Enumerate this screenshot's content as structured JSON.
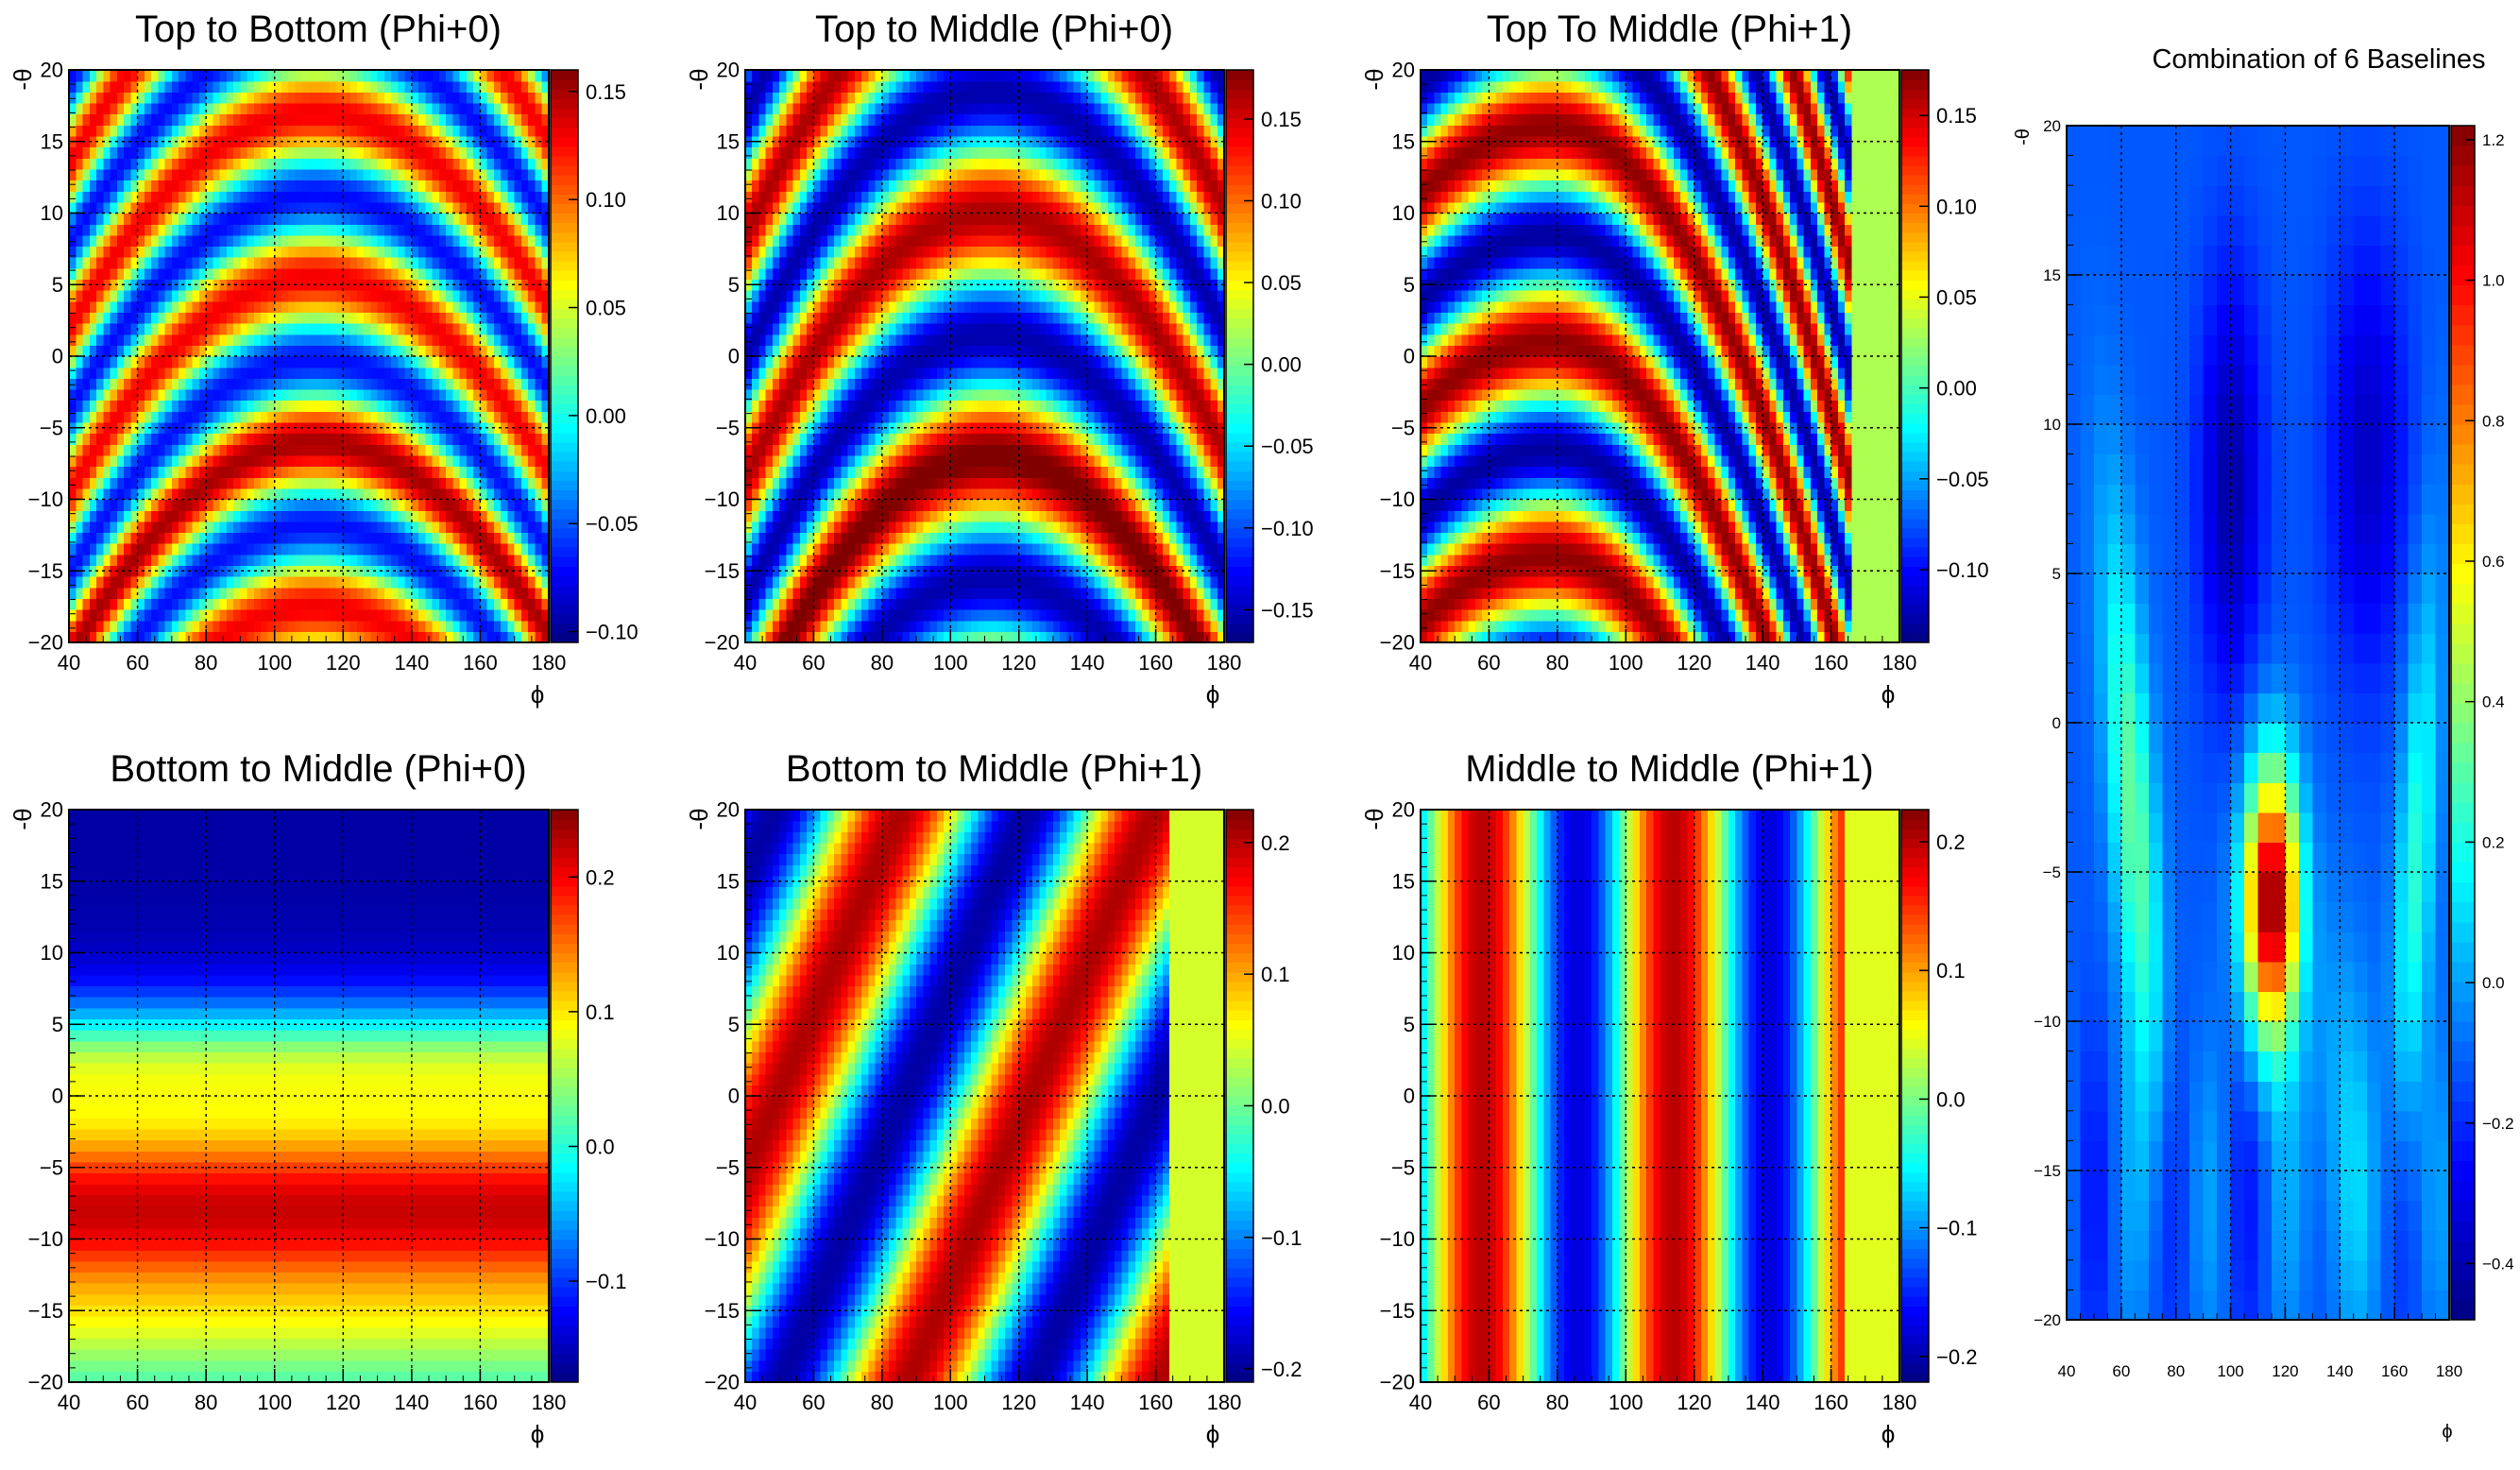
{
  "figure": {
    "background": "#ffffff",
    "colormap": "jet"
  },
  "chart_data": [
    {
      "type": "heatmap",
      "title": "Top to Bottom (Phi+0)",
      "xlabel": "ϕ",
      "ylabel": "-θ",
      "xlim": [
        40,
        180
      ],
      "ylim": [
        -20,
        20
      ],
      "xticks": [
        40,
        60,
        80,
        100,
        120,
        140,
        160,
        180
      ],
      "yticks": [
        -20,
        -15,
        -10,
        -5,
        0,
        5,
        10,
        15,
        20
      ],
      "zlim": [
        -0.105,
        0.16
      ],
      "zticks": [
        -0.1,
        -0.05,
        0.0,
        0.05,
        0.1,
        0.15
      ],
      "ztick_labels": [
        "−0.10",
        "−0.05",
        "0.00",
        "0.05",
        "0.10",
        "0.15"
      ],
      "grid": true,
      "pattern": "Concentric arcs centred near ϕ=112; red band along arc through -θ≈-6 at ϕ=112, blue bands near -θ≈-1 and -θ≈-13, alternating yellow/blue above",
      "valid_phi_max": 180
    },
    {
      "type": "heatmap",
      "title": "Top to  Middle (Phi+0)",
      "xlabel": "ϕ",
      "ylabel": "-θ",
      "xlim": [
        40,
        180
      ],
      "ylim": [
        -20,
        20
      ],
      "xticks": [
        40,
        60,
        80,
        100,
        120,
        140,
        160,
        180
      ],
      "yticks": [
        -20,
        -15,
        -10,
        -5,
        0,
        5,
        10,
        15,
        20
      ],
      "zlim": [
        -0.17,
        0.18
      ],
      "zticks": [
        -0.15,
        -0.1,
        -0.05,
        0.0,
        0.05,
        0.1,
        0.15
      ],
      "ztick_labels": [
        "−0.15",
        "−0.10",
        "−0.05",
        "0.00",
        "0.05",
        "0.10",
        "0.15"
      ],
      "grid": true,
      "pattern": "Concentric arcs centred near ϕ=112; red bands along arcs through -θ≈-7 and orange near -θ≈10, blue bands near -θ≈-1 and -θ≈-18",
      "valid_phi_max": 180
    },
    {
      "type": "heatmap",
      "title": "Top To Middle (Phi+1)",
      "xlabel": "ϕ",
      "ylabel": "-θ",
      "xlim": [
        40,
        180
      ],
      "ylim": [
        -20,
        20
      ],
      "xticks": [
        40,
        60,
        80,
        100,
        120,
        140,
        160,
        180
      ],
      "yticks": [
        -20,
        -15,
        -10,
        -5,
        0,
        5,
        10,
        15,
        20
      ],
      "zlim": [
        -0.14,
        0.175
      ],
      "zticks": [
        -0.1,
        -0.05,
        0.0,
        0.05,
        0.1,
        0.15
      ],
      "ztick_labels": [
        "−0.10",
        "−0.05",
        "0.00",
        "0.05",
        "0.10",
        "0.15"
      ],
      "grid": true,
      "pattern": "Arcs centred near ϕ=78 sweeping down to the right; red band through -θ≈1 at ϕ=78, blue band through -θ≈9; no data (flat green) for ϕ>165",
      "valid_phi_max": 165
    },
    {
      "type": "heatmap",
      "title": "Bottom to Middle (Phi+0)",
      "xlabel": "ϕ",
      "ylabel": "-θ",
      "xlim": [
        40,
        180
      ],
      "ylim": [
        -20,
        20
      ],
      "xticks": [
        40,
        60,
        80,
        100,
        120,
        140,
        160,
        180
      ],
      "yticks": [
        -20,
        -15,
        -10,
        -5,
        0,
        5,
        10,
        15,
        20
      ],
      "zlim": [
        -0.175,
        0.25
      ],
      "zticks": [
        -0.1,
        0.0,
        0.1,
        0.2
      ],
      "ztick_labels": [
        "−0.1",
        "0.0",
        "0.1",
        "0.2"
      ],
      "grid": true,
      "pattern": "Horizontal bands independent of ϕ; dark blue for -θ above 10, yellow near -θ≈2, dark red near -θ≈-8, yellow near -θ≈-16",
      "valid_phi_max": 180
    },
    {
      "type": "heatmap",
      "title": "Bottom to Middle (Phi+1)",
      "xlabel": "ϕ",
      "ylabel": "-θ",
      "xlim": [
        40,
        180
      ],
      "ylim": [
        -20,
        20
      ],
      "xticks": [
        40,
        60,
        80,
        100,
        120,
        140,
        160,
        180
      ],
      "yticks": [
        -20,
        -15,
        -10,
        -5,
        0,
        5,
        10,
        15,
        20
      ],
      "zlim": [
        -0.21,
        0.225
      ],
      "zticks": [
        -0.2,
        -0.1,
        0.0,
        0.1,
        0.2
      ],
      "ztick_labels": [
        "−0.2",
        "−0.1",
        "0.0",
        "0.1",
        "0.2"
      ],
      "grid": true,
      "pattern": "Diagonal stripes rising to the right; red stripe from (ϕ=45,-θ=-5) to (ϕ=90,-θ=18), blue stripe beside it, red stripe from (ϕ=90,-θ=-20) to (ϕ=155,-θ=18); no data (flat green) for ϕ>163",
      "valid_phi_max": 163
    },
    {
      "type": "heatmap",
      "title": "Middle to Middle (Phi+1)",
      "xlabel": "ϕ",
      "ylabel": "-θ",
      "xlim": [
        40,
        180
      ],
      "ylim": [
        -20,
        20
      ],
      "xticks": [
        40,
        60,
        80,
        100,
        120,
        140,
        160,
        180
      ],
      "yticks": [
        -20,
        -15,
        -10,
        -5,
        0,
        5,
        10,
        15,
        20
      ],
      "zlim": [
        -0.22,
        0.225
      ],
      "zticks": [
        -0.2,
        -0.1,
        0.0,
        0.1,
        0.2
      ],
      "ztick_labels": [
        "−0.2",
        "−0.1",
        "0.0",
        "0.1",
        "0.2"
      ],
      "grid": true,
      "pattern": "Vertical stripes independent of -θ; orange near ϕ≈50, blue near ϕ≈87, dark red near ϕ≈113, blue near ϕ≈145; no data (flat green) for ϕ>163",
      "valid_phi_max": 163
    },
    {
      "type": "heatmap",
      "title": "Combination of 6 Baselines",
      "xlabel": "ϕ",
      "ylabel": "-θ",
      "xlim": [
        40,
        180
      ],
      "ylim": [
        -20,
        20
      ],
      "xticks": [
        40,
        60,
        80,
        100,
        120,
        140,
        160,
        180
      ],
      "yticks": [
        -20,
        -15,
        -10,
        -5,
        0,
        5,
        10,
        15,
        20
      ],
      "zlim": [
        -0.48,
        1.22
      ],
      "zticks": [
        -0.4,
        -0.2,
        0.0,
        0.2,
        0.4,
        0.6,
        0.8,
        1.0,
        1.2
      ],
      "ztick_labels": [
        "−0.4",
        "−0.2",
        "0.0",
        "0.2",
        "0.4",
        "0.6",
        "0.8",
        "1.0",
        "1.2"
      ],
      "grid": true,
      "pattern": "Mostly blue background; peak (dark red, ≈1.2) at ϕ≈115, -θ≈-6; yellow-green arcs on left near ϕ≈55 spanning -θ -10 to 5 and on right near ϕ≈170 spanning -θ -10 to 0",
      "valid_phi_max": 180
    }
  ]
}
